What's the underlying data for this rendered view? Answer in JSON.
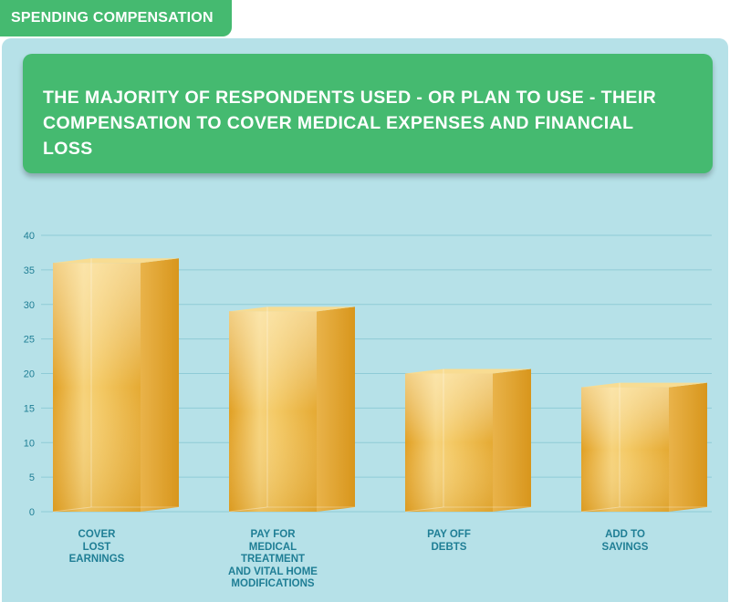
{
  "header": {
    "tag": "SPENDING COMPENSATION",
    "title": "THE MAJORITY OF RESPONDENTS USED - OR PLAN TO USE - THEIR COMPENSATION TO COVER MEDICAL EXPENSES AND FINANCIAL LOSS"
  },
  "colors": {
    "accent_green": "#45ba70",
    "panel_background": "#b6e1e8",
    "axis_text": "#1f7e95",
    "bar_gold": "#e3a52a"
  },
  "chart_data": {
    "type": "bar",
    "title": "THE MAJORITY OF RESPONDENTS USED - OR PLAN TO USE - THEIR COMPENSATION TO COVER MEDICAL EXPENSES AND FINANCIAL LOSS",
    "categories": [
      "COVER\nLOST\nEARNINGS",
      "PAY FOR\nMEDICAL\nTREATMENT\nAND VITAL HOME\nMODIFICATIONS",
      "PAY OFF\nDEBTS",
      "ADD TO\nSAVINGS"
    ],
    "values": [
      36,
      29,
      20,
      18
    ],
    "xlabel": "",
    "ylabel": "",
    "ylim": [
      0,
      40
    ],
    "yticks": [
      0,
      5,
      10,
      15,
      20,
      25,
      30,
      35,
      40
    ],
    "grid": true,
    "bar_style": "3d"
  }
}
